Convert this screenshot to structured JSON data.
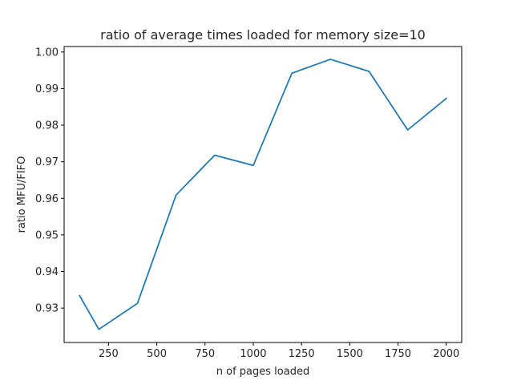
{
  "chart_data": {
    "type": "line",
    "title": "ratio of average times loaded for memory size=10",
    "xlabel": "n of pages loaded",
    "ylabel": "ratio MFU/FIFO",
    "xlim": [
      20,
      2080
    ],
    "ylim": [
      0.9206,
      1.0015
    ],
    "xticks": [
      250,
      500,
      750,
      1000,
      1250,
      1500,
      1750,
      2000
    ],
    "xtick_labels": [
      "250",
      "500",
      "750",
      "1000",
      "1250",
      "1500",
      "1750",
      "2000"
    ],
    "yticks": [
      0.93,
      0.94,
      0.95,
      0.96,
      0.97,
      0.98,
      0.99,
      1.0
    ],
    "ytick_labels": [
      "0.93",
      "0.94",
      "0.95",
      "0.96",
      "0.97",
      "0.98",
      "0.99",
      "1.00"
    ],
    "grid": false,
    "series": [
      {
        "color": "#1f77b4",
        "x": [
          100,
          200,
          400,
          600,
          800,
          1000,
          1200,
          1400,
          1600,
          1800,
          2000
        ],
        "y": [
          0.9334,
          0.9242,
          0.9313,
          0.9609,
          0.9718,
          0.969,
          0.9942,
          0.998,
          0.9947,
          0.9787,
          0.9873
        ]
      }
    ]
  }
}
